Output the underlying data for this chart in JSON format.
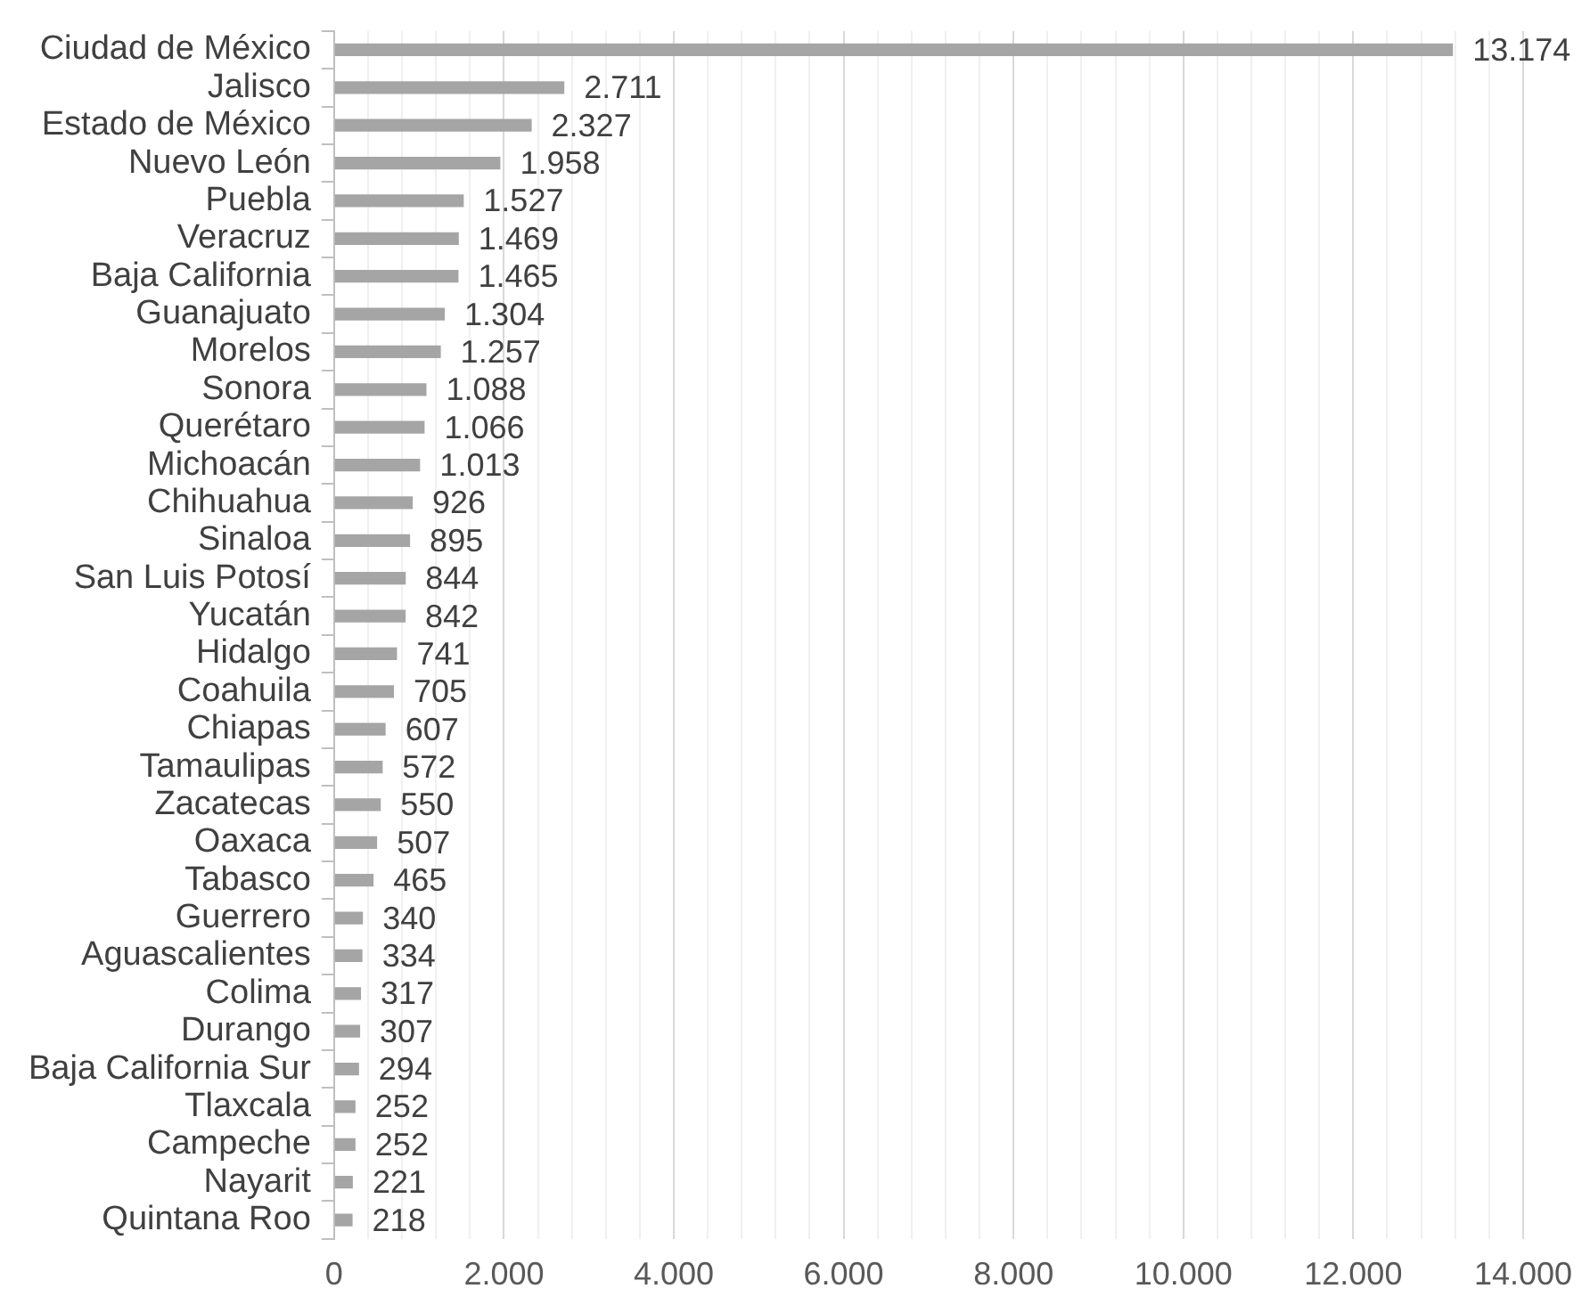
{
  "chart_data": {
    "type": "bar",
    "orientation": "horizontal",
    "categories": [
      "Ciudad de México",
      "Jalisco",
      "Estado de México",
      "Nuevo León",
      "Puebla",
      "Veracruz",
      "Baja California",
      "Guanajuato",
      "Morelos",
      "Sonora",
      "Querétaro",
      "Michoacán",
      "Chihuahua",
      "Sinaloa",
      "San Luis Potosí",
      "Yucatán",
      "Hidalgo",
      "Coahuila",
      "Chiapas",
      "Tamaulipas",
      "Zacatecas",
      "Oaxaca",
      "Tabasco",
      "Guerrero",
      "Aguascalientes",
      "Colima",
      "Durango",
      "Baja California Sur",
      "Tlaxcala",
      "Campeche",
      "Nayarit",
      "Quintana Roo"
    ],
    "values": [
      13174,
      2711,
      2327,
      1958,
      1527,
      1469,
      1465,
      1304,
      1257,
      1088,
      1066,
      1013,
      926,
      895,
      844,
      842,
      741,
      705,
      607,
      572,
      550,
      507,
      465,
      340,
      334,
      317,
      307,
      294,
      252,
      252,
      221,
      218
    ],
    "value_labels": [
      "13.174",
      "2.711",
      "2.327",
      "1.958",
      "1.527",
      "1.469",
      "1.465",
      "1.304",
      "1.257",
      "1.088",
      "1.066",
      "1.013",
      "926",
      "895",
      "844",
      "842",
      "741",
      "705",
      "607",
      "572",
      "550",
      "507",
      "465",
      "340",
      "334",
      "317",
      "307",
      "294",
      "252",
      "252",
      "221",
      "218"
    ],
    "color": "#a5a5a5",
    "xlim": [
      0,
      14000
    ],
    "xticks": [
      {
        "value": 0,
        "label": "0"
      },
      {
        "value": 400,
        "label": null
      },
      {
        "value": 800,
        "label": null
      },
      {
        "value": 1200,
        "label": null
      },
      {
        "value": 1600,
        "label": null
      },
      {
        "value": 2000,
        "label": "2.000"
      },
      {
        "value": 2400,
        "label": null
      },
      {
        "value": 2800,
        "label": null
      },
      {
        "value": 3200,
        "label": null
      },
      {
        "value": 3600,
        "label": null
      },
      {
        "value": 4000,
        "label": "4.000"
      },
      {
        "value": 4400,
        "label": null
      },
      {
        "value": 4800,
        "label": null
      },
      {
        "value": 5200,
        "label": null
      },
      {
        "value": 5600,
        "label": null
      },
      {
        "value": 6000,
        "label": "6.000"
      },
      {
        "value": 6400,
        "label": null
      },
      {
        "value": 6800,
        "label": null
      },
      {
        "value": 7200,
        "label": null
      },
      {
        "value": 7600,
        "label": null
      },
      {
        "value": 8000,
        "label": "8.000"
      },
      {
        "value": 8400,
        "label": null
      },
      {
        "value": 8800,
        "label": null
      },
      {
        "value": 9200,
        "label": null
      },
      {
        "value": 9600,
        "label": null
      },
      {
        "value": 10000,
        "label": "10.000"
      },
      {
        "value": 10400,
        "label": null
      },
      {
        "value": 10800,
        "label": null
      },
      {
        "value": 11200,
        "label": null
      },
      {
        "value": 11600,
        "label": null
      },
      {
        "value": 12000,
        "label": "12.000"
      },
      {
        "value": 12400,
        "label": null
      },
      {
        "value": 12800,
        "label": null
      },
      {
        "value": 13200,
        "label": null
      },
      {
        "value": 13600,
        "label": null
      },
      {
        "value": 14000,
        "label": "14.000"
      }
    ],
    "grid": "x"
  }
}
